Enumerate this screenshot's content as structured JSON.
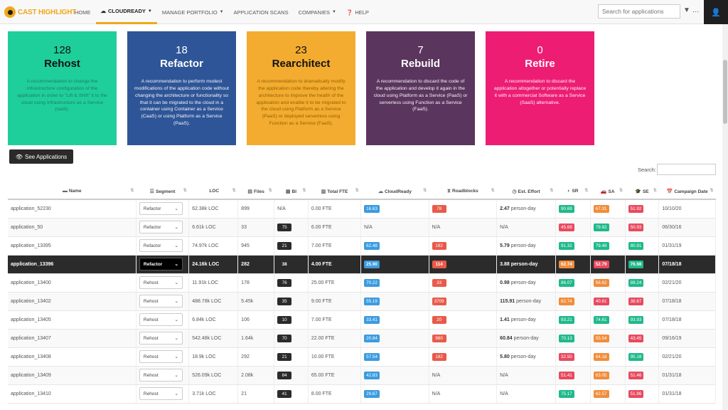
{
  "brand": {
    "name": "CAST HIGHLIGHT",
    "color": "#f0a81c"
  },
  "nav": [
    {
      "label": "HOME"
    },
    {
      "label": "CLOUDREADY",
      "active": true
    },
    {
      "label": "MANAGE PORTFOLIO"
    },
    {
      "label": "APPLICATION SCANS"
    },
    {
      "label": "COMPANIES"
    },
    {
      "label": "HELP"
    }
  ],
  "search": {
    "placeholder": "Search for applications"
  },
  "cards": [
    {
      "count": "128",
      "title": "Rehost",
      "desc": "A recommendation to change the infrastructure configuration of the application in order to \"Lift & Shift\" it to the cloud using Infrastructure as a Service (IaaS).",
      "color": "#1fcf9b"
    },
    {
      "count": "18",
      "title": "Refactor",
      "desc": "A recommendation to perform modest modifications of the application code without changing the architecture or functionality so that it can be migrated to the cloud in a container using Container as a Service (CaaS) or using Platform as a Service (PaaS).",
      "color": "#2e5597"
    },
    {
      "count": "23",
      "title": "Rearchitect",
      "desc": "A recommendation to dramatically modify the application code thereby altering the architecture to improve the health of the application and enable it to be migrated to the cloud using Platform as a Service (PaaS) or deployed serverless using Function as a Service (FaaS).",
      "color": "#f3ac30"
    },
    {
      "count": "7",
      "title": "Rebuild",
      "desc": "A recommendation to discard the code of the application and develop it again in the cloud using Platform as a Service (PaaS) or serverless using Function as a Service (FaaS).",
      "color": "#5a355e"
    },
    {
      "count": "0",
      "title": "Retire",
      "desc": "A recommendation to discard the application altogether or potentially replace it with a commercial Software as a Service (SaaS) alternative.",
      "color": "#ed1d74"
    }
  ],
  "see_apps": "See Applications",
  "table_search_label": "Search:",
  "columns": [
    "Name",
    "Segment",
    "LOC",
    "Files",
    "BI",
    "Total FTE",
    "CloudReady",
    "Roadblocks",
    "Est. Effort",
    "SR",
    "SA",
    "SE",
    "Campaign Date"
  ],
  "rows": [
    {
      "name": "application_52230",
      "segment": "Refactor",
      "loc": "62.38k LOC",
      "files": "899",
      "bi": "N/A",
      "fte": "0.00 FTE",
      "cloud": "16.63",
      "road": "78",
      "effort": "2.47",
      "sr": "90.69",
      "sa": "67.31",
      "se": "51.92",
      "date": "10/10/20"
    },
    {
      "name": "application_50",
      "segment": "Refactor",
      "loc": "6.61k LOC",
      "files": "33",
      "bi": "75",
      "fte": "6.00 FTE",
      "cloud": "N/A",
      "road": "N/A",
      "effort": "N/A",
      "sr": "45.69",
      "sa": "79.92",
      "se": "50.93",
      "date": "06/30/16"
    },
    {
      "name": "application_13395",
      "segment": "Refactor",
      "loc": "74.97k LOC",
      "files": "945",
      "bi": "21",
      "fte": "7.00 FTE",
      "cloud": "62.48",
      "road": "182",
      "effort": "5.79",
      "sr": "91.32",
      "sa": "79.48",
      "se": "80.91",
      "date": "01/31/19"
    },
    {
      "name": "application_13396",
      "segment": "Refactor",
      "loc": "24.16k LOC",
      "files": "282",
      "bi": "38",
      "fte": "4.00 FTE",
      "cloud": "25.90",
      "road": "114",
      "effort": "3.88",
      "sr": "62.74",
      "sa": "52.79",
      "se": "76.98",
      "date": "07/18/18",
      "selected": true
    },
    {
      "name": "application_13400",
      "segment": "Rehost",
      "loc": "11.91k LOC",
      "files": "178",
      "bi": "76",
      "fte": "25.00 FTE",
      "cloud": "70.22",
      "road": "33",
      "effort": "0.98",
      "sr": "86.07",
      "sa": "56.62",
      "se": "89.24",
      "date": "02/21/20"
    },
    {
      "name": "application_13402",
      "segment": "Rehost",
      "loc": "488.78k LOC",
      "files": "5.45k",
      "bi": "35",
      "fte": "9.00 FTE",
      "cloud": "55.19",
      "road": "3709",
      "effort": "115.91",
      "sr": "62.74",
      "sa": "40.81",
      "se": "38.67",
      "date": "07/18/18"
    },
    {
      "name": "application_13405",
      "segment": "Rehost",
      "loc": "6.84k LOC",
      "files": "106",
      "bi": "10",
      "fte": "7.00 FTE",
      "cloud": "33.41",
      "road": "20",
      "effort": "1.41",
      "sr": "93.21",
      "sa": "74.61",
      "se": "93.93",
      "date": "07/18/18"
    },
    {
      "name": "application_13407",
      "segment": "Rehost",
      "loc": "542.48k LOC",
      "files": "1.64k",
      "bi": "70",
      "fte": "22.00 FTE",
      "cloud": "20.84",
      "road": "980",
      "effort": "60.84",
      "sr": "70.13",
      "sa": "55.54",
      "se": "43.45",
      "date": "09/16/19"
    },
    {
      "name": "application_13408",
      "segment": "Rehost",
      "loc": "18.9k LOC",
      "files": "292",
      "bi": "21",
      "fte": "10.00 FTE",
      "cloud": "57.54",
      "road": "182",
      "effort": "5.80",
      "sr": "32.50",
      "sa": "64.18",
      "se": "95.18",
      "date": "02/21/20"
    },
    {
      "name": "application_13409",
      "segment": "Rehost",
      "loc": "526.09k LOC",
      "files": "2.08k",
      "bi": "84",
      "fte": "65.00 FTE",
      "cloud": "42.83",
      "road": "N/A",
      "effort": "N/A",
      "sr": "51.41",
      "sa": "63.05",
      "se": "51.46",
      "date": "01/31/18"
    },
    {
      "name": "application_13410",
      "segment": "Rehost",
      "loc": "3.71k LOC",
      "files": "21",
      "bi": "41",
      "fte": "8.00 FTE",
      "cloud": "29.67",
      "road": "N/A",
      "effort": "N/A",
      "sr": "75.17",
      "sa": "62.57",
      "se": "51.96",
      "date": "01/31/18"
    }
  ],
  "unit_effort": "person-day"
}
